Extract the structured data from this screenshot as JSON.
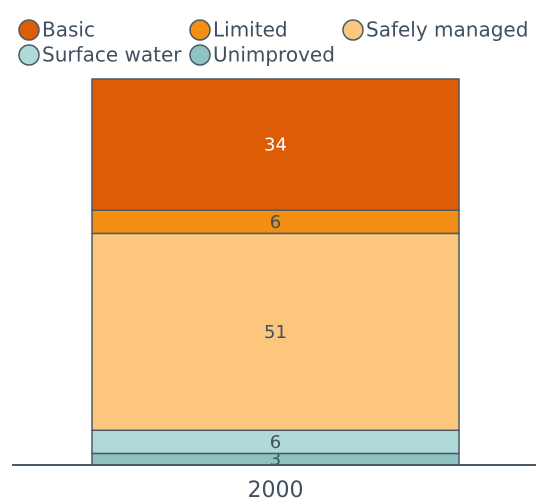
{
  "chart_data": {
    "type": "bar",
    "stacked": true,
    "categories": [
      "2000"
    ],
    "series": [
      {
        "name": "Basic",
        "color": "#de5c06",
        "values": [
          34
        ]
      },
      {
        "name": "Limited",
        "color": "#f28e12",
        "values": [
          6
        ]
      },
      {
        "name": "Safely managed",
        "color": "#fcc77d",
        "values": [
          51
        ]
      },
      {
        "name": "Surface water",
        "color": "#b0dad8",
        "values": [
          6
        ]
      },
      {
        "name": "Unimproved",
        "color": "#8fc3c2",
        "values": [
          3
        ]
      }
    ],
    "ylim": [
      0,
      100
    ],
    "legend": "top-left"
  }
}
